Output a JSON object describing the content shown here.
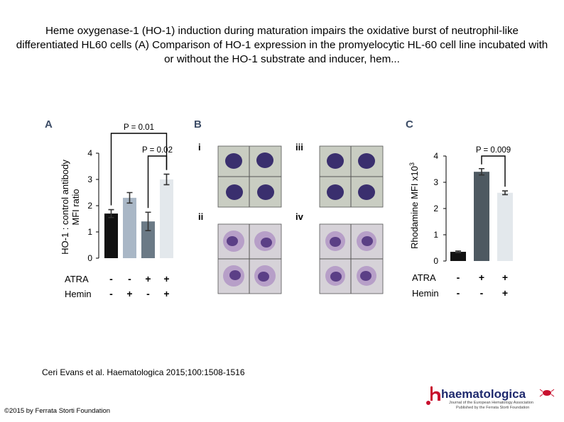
{
  "slide": {
    "title": "Heme oxygenase-1 (HO-1) induction during maturation impairs the oxidative burst of neutrophil-like differentiated HL60 cells (A) Comparison of HO-1 expression in the promyelocytic HL-60 cell line incubated with or without the HO-1 substrate and inducer, hem...",
    "citation": "Ceri Evans et al. Haematologica 2015;100:1508-1516",
    "copyright": "©2015 by Ferrata Storti Foundation"
  },
  "logo": {
    "wordmark": "haematologica",
    "tagline_1": "Journal of the European Hematology Association",
    "tagline_2": "Published by the Ferrata Storti Foundation"
  },
  "colors": {
    "black_bar": "#111111",
    "light_blue_bar": "#a9b7c6",
    "slate_bar": "#6b7a86",
    "very_light_bar": "#e3e8ec",
    "dark_slate_bar": "#4e5961",
    "cell_stain": "#3a2f6e",
    "logo_red": "#c8102e"
  },
  "panels": {
    "a": {
      "letter": "A"
    },
    "b": {
      "letter": "B",
      "subpanels": [
        {
          "label": "i"
        },
        {
          "label": "iii"
        },
        {
          "label": "ii"
        },
        {
          "label": "iv"
        }
      ]
    },
    "c": {
      "letter": "C"
    }
  },
  "chart_data": [
    {
      "type": "bar",
      "panel": "A",
      "ylabel": "HO-1 : control antibody MFI ratio",
      "ylabel_line1": "HO-1 : control antibody",
      "ylabel_line2": "MFI ratio",
      "ylim": [
        0,
        4
      ],
      "yticks": [
        "0",
        "1",
        "2",
        "3",
        "4"
      ],
      "values": [
        1.7,
        2.3,
        1.4,
        3.0
      ],
      "errors": [
        0.15,
        0.2,
        0.35,
        0.2
      ],
      "bar_colors": [
        "#111111",
        "#a9b7c6",
        "#6b7a86",
        "#e3e8ec"
      ],
      "conditions": [
        {
          "name": "ATRA",
          "signs": [
            "-",
            "-",
            "+",
            "+"
          ]
        },
        {
          "name": "Hemin",
          "signs": [
            "-",
            "+",
            "-",
            "+"
          ]
        }
      ],
      "annotations": [
        {
          "text": "P = 0.01",
          "between": [
            0,
            3
          ]
        },
        {
          "text": "P = 0.02",
          "between": [
            2,
            3
          ]
        }
      ]
    },
    {
      "type": "bar",
      "panel": "C",
      "ylabel": "Rhodamine MFI x10³",
      "ylabel_main": "Rhodamine MFI x10",
      "ylabel_exp": "3",
      "ylim": [
        0,
        4
      ],
      "yticks": [
        "0",
        "1",
        "2",
        "3",
        "4"
      ],
      "values": [
        0.35,
        3.4,
        2.6
      ],
      "errors": [
        0.03,
        0.12,
        0.07
      ],
      "bar_colors": [
        "#111111",
        "#4e5961",
        "#e3e8ec"
      ],
      "conditions": [
        {
          "name": "ATRA",
          "signs": [
            "-",
            "+",
            "+"
          ]
        },
        {
          "name": "Hemin",
          "signs": [
            "-",
            "-",
            "+"
          ]
        }
      ],
      "annotations": [
        {
          "text": "P = 0.009",
          "between": [
            1,
            2
          ]
        }
      ]
    }
  ]
}
